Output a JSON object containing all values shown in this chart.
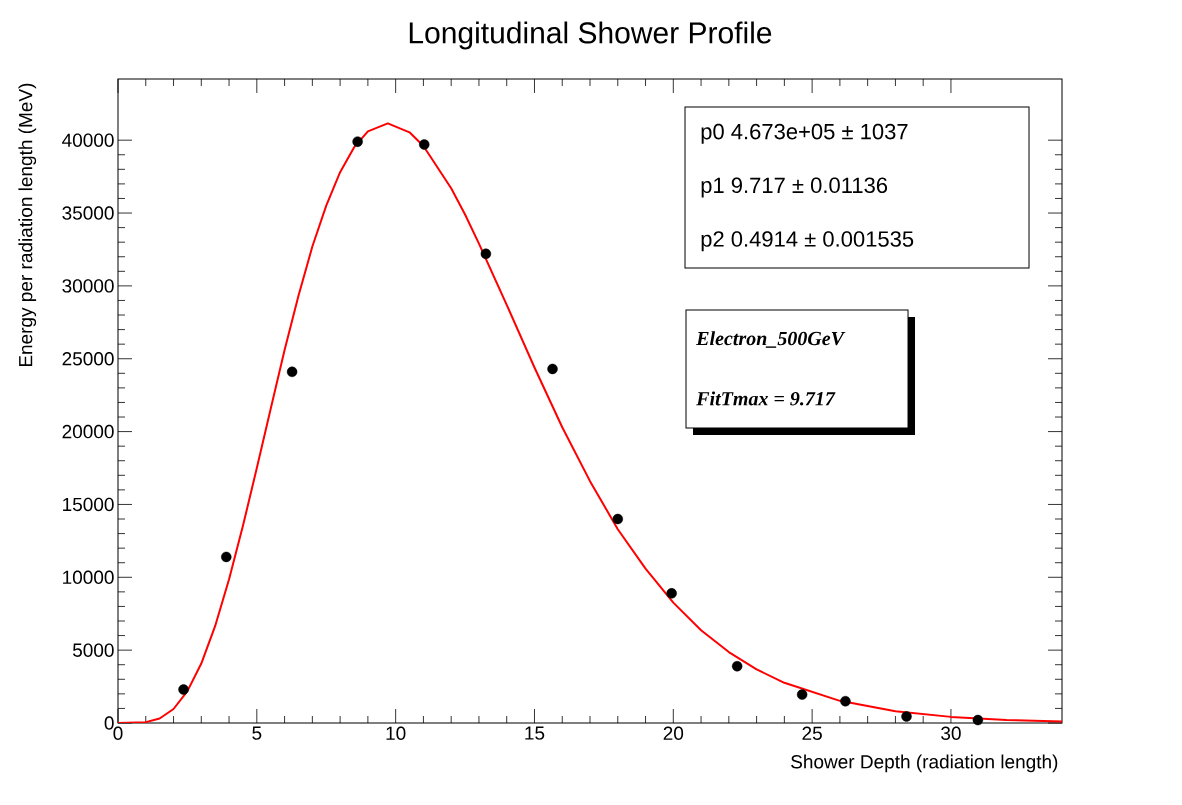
{
  "chart_data": {
    "type": "scatter",
    "title": "Longitudinal Shower Profile",
    "xlabel": "Shower Depth (radiation length)",
    "ylabel": "Energy per radiation length (MeV)",
    "xlim": [
      0,
      34
    ],
    "ylim": [
      0,
      44200
    ],
    "xticks": [
      0,
      5,
      10,
      15,
      20,
      25,
      30
    ],
    "yticks": [
      0,
      5000,
      10000,
      15000,
      20000,
      25000,
      30000,
      35000,
      40000
    ],
    "grid": false,
    "marker": "circle",
    "annotations": [
      "p0    4.673e+05 ±  1037",
      "p1          9.717 ± 0.01136",
      "p2    0.4914 ± 0.001535",
      "Electron_500GeV",
      "FitTmax = 9.717"
    ],
    "series": [
      {
        "color": "#000000",
        "x": [
          2.36,
          3.9,
          6.27,
          8.63,
          11.03,
          13.25,
          15.65,
          18.0,
          19.94,
          22.3,
          24.64,
          26.2,
          28.4,
          30.97
        ],
        "values": [
          2300,
          11400,
          24100,
          39900,
          39700,
          32200,
          24300,
          14000,
          8900,
          3900,
          1950,
          1500,
          450,
          200
        ]
      },
      {
        "type": "line",
        "color": "#ff0000",
        "marker": "none",
        "line_style": "solid",
        "x": [
          0,
          1,
          1.5,
          2,
          2.5,
          3,
          3.5,
          4,
          4.5,
          5,
          5.5,
          6,
          6.5,
          7,
          7.5,
          8,
          8.5,
          9,
          9.717,
          10.5,
          11,
          12,
          12.5,
          13,
          14,
          15,
          16,
          17,
          18,
          19,
          20,
          21,
          22,
          23,
          24,
          26,
          28,
          30,
          32,
          34
        ],
        "values": [
          0,
          60,
          310,
          960,
          2190,
          4080,
          6660,
          9870,
          13530,
          17500,
          21570,
          25600,
          29320,
          32700,
          35510,
          37800,
          39500,
          40600,
          41150,
          40540,
          39600,
          36700,
          34900,
          32900,
          28700,
          24400,
          20300,
          16600,
          13300,
          10600,
          8260,
          6370,
          4870,
          3680,
          2760,
          1520,
          810,
          420,
          210,
          110
        ]
      }
    ]
  }
}
